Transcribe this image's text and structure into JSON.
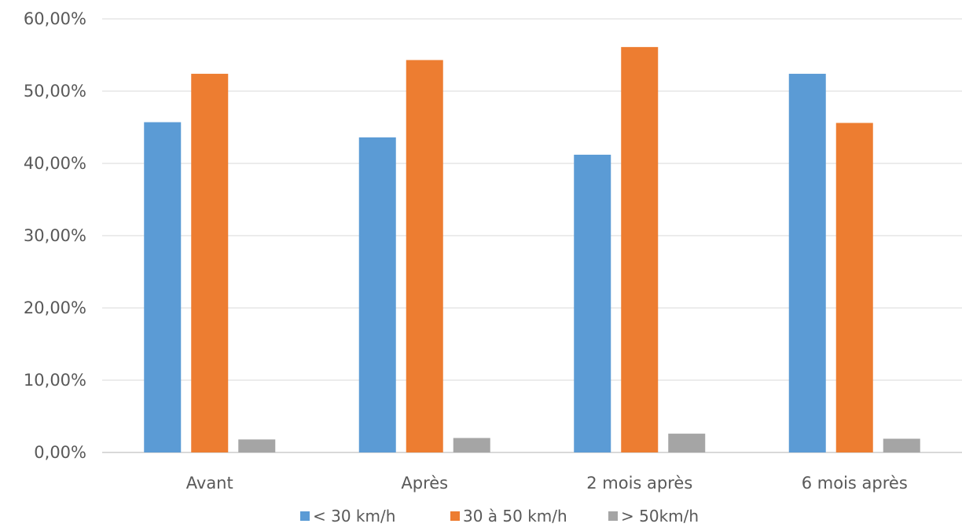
{
  "chart_data": {
    "type": "bar",
    "categories": [
      "Avant",
      "Après",
      "2 mois après",
      "6 mois après"
    ],
    "series": [
      {
        "name": "< 30 km/h",
        "color": "#5b9bd5",
        "values": [
          45.7,
          43.6,
          41.2,
          52.4
        ]
      },
      {
        "name": "30 à 50 km/h",
        "color": "#ed7d31",
        "values": [
          52.4,
          54.3,
          56.1,
          45.6
        ]
      },
      {
        "name": "> 50km/h",
        "color": "#a5a5a5",
        "values": [
          1.8,
          2.0,
          2.6,
          1.9
        ]
      }
    ],
    "ylim": [
      0,
      60
    ],
    "yticks": [
      "0,00%",
      "10,00%",
      "20,00%",
      "30,00%",
      "40,00%",
      "50,00%",
      "60,00%"
    ],
    "grid": true,
    "legend_position": "bottom"
  }
}
